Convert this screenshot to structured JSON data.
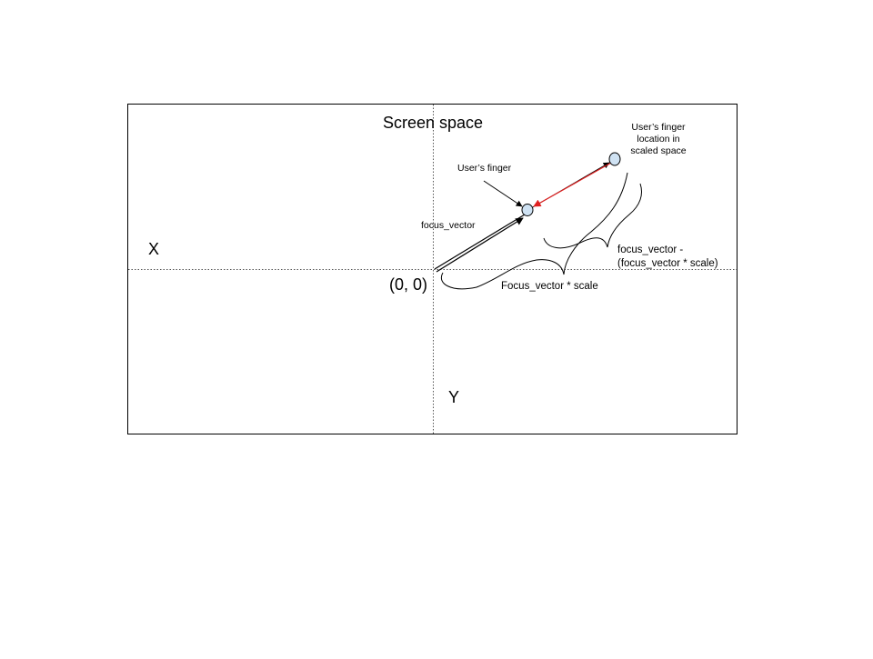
{
  "diagram": {
    "title": "Screen space",
    "axis_x": "X",
    "axis_y": "Y",
    "origin": "(0, 0)",
    "focus_vector": "focus_vector",
    "users_finger": "User’s finger",
    "scaled_finger": [
      "User’s finger",
      "location in",
      "scaled space"
    ],
    "scaled_vector": "Focus_vector * scale",
    "difference": [
      "focus_vector -",
      "(focus_vector * scale)"
    ]
  },
  "colors": {
    "line": "#000000",
    "axis": "#555555",
    "difference_arrow": "#e02020",
    "point_fill": "#cfe2f3",
    "point_stroke": "#000000"
  }
}
